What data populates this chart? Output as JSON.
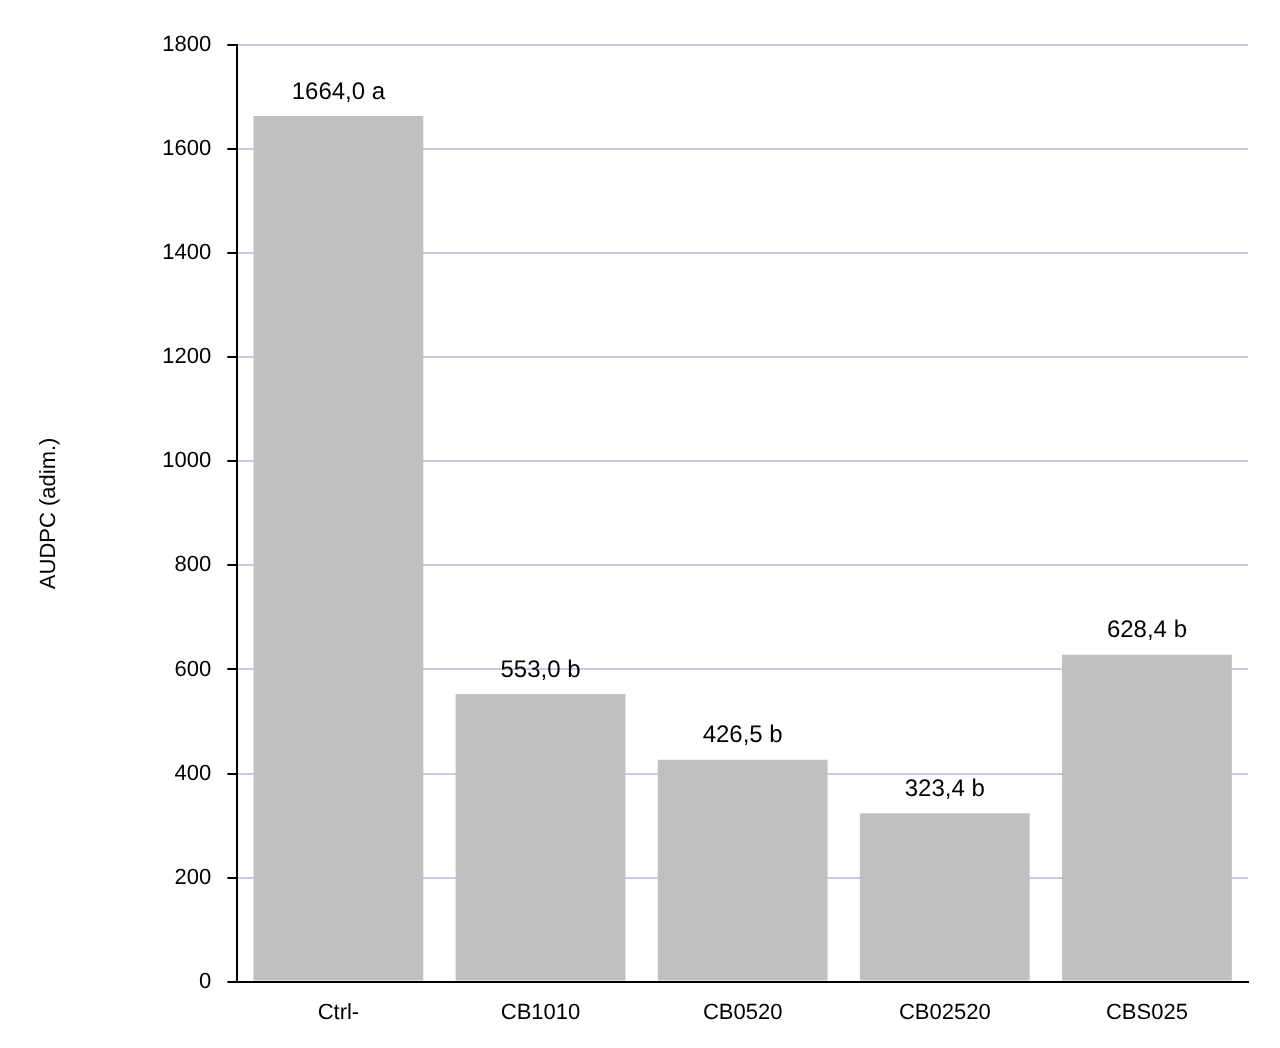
{
  "chart_data": {
    "type": "bar",
    "ylabel": "AUDPC (adim.)",
    "categories": [
      "Ctrl-",
      "CB1010",
      "CB0520",
      "CB02520",
      "CBS025"
    ],
    "values": [
      1664.0,
      553.0,
      426.5,
      323.4,
      628.4
    ],
    "value_labels": [
      "1664,0 a",
      "553,0 b",
      "426,5 b",
      "323,4 b",
      "628,4 b"
    ],
    "color": "#c0c0c0",
    "ylim": [
      0,
      1800
    ],
    "yticks": [
      0,
      200,
      400,
      600,
      800,
      1000,
      1200,
      1400,
      1600,
      1800
    ],
    "grid": "y",
    "legend": false
  }
}
